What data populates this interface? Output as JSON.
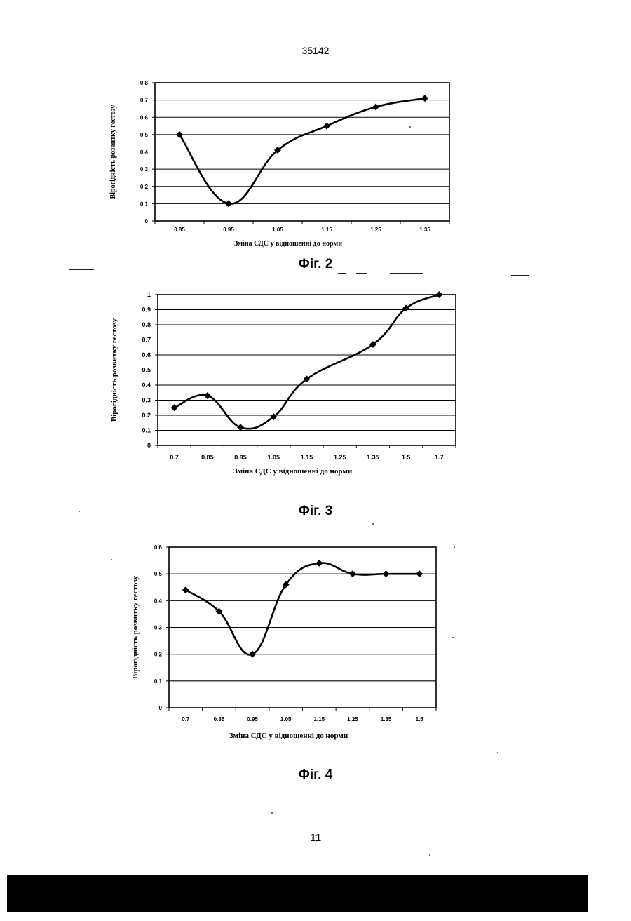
{
  "page": {
    "doc_number": "35142",
    "page_number": "11"
  },
  "chart_data": [
    {
      "type": "line",
      "caption": "Фіг. 2",
      "ylabel": "Вірогідність розвитку гестозу",
      "xlabel": "Зміна СДС у відношенні до норми",
      "categories": [
        "0.85",
        "0.95",
        "1.05",
        "1.15",
        "1.25",
        "1.35"
      ],
      "yticks": [
        "0",
        "0.1",
        "0.2",
        "0.3",
        "0.4",
        "0.5",
        "0.6",
        "0.7",
        "0.8"
      ],
      "ylim": [
        0,
        0.8
      ],
      "grid": true,
      "series": [
        {
          "values": [
            0.5,
            0.1,
            0.41,
            0.55,
            0.66,
            0.71
          ]
        }
      ]
    },
    {
      "type": "line",
      "caption": "Фіг. 3",
      "ylabel": "Вірогідність розвитку гестозу",
      "xlabel": "Зміна СДС у відношенні до норми",
      "categories": [
        "0.7",
        "0.85",
        "0.95",
        "1.05",
        "1.15",
        "1.25",
        "1.35",
        "1.5",
        "1.7"
      ],
      "yticks": [
        "0",
        "0.1",
        "0.2",
        "0.3",
        "0.4",
        "0.5",
        "0.6",
        "0.7",
        "0.8",
        "0.9",
        "1"
      ],
      "ylim": [
        0,
        1
      ],
      "grid": true,
      "series": [
        {
          "points": [
            [
              0,
              0.25
            ],
            [
              1,
              0.33
            ],
            [
              2,
              0.12
            ],
            [
              3,
              0.19
            ],
            [
              4,
              0.44
            ],
            [
              6,
              0.67
            ],
            [
              7,
              0.91
            ],
            [
              8,
              1.0
            ]
          ]
        }
      ]
    },
    {
      "type": "line",
      "caption": "Фіг. 4",
      "ylabel": "Вірогідність розвитку гестозу",
      "xlabel": "Зміна СДС у відношенні до норми",
      "categories": [
        "0.7",
        "0.85",
        "0.95",
        "1.05",
        "1.15",
        "1.25",
        "1.35",
        "1.5"
      ],
      "yticks": [
        "0",
        "0.1",
        "0.2",
        "0.3",
        "0.4",
        "0.5",
        "0.6"
      ],
      "ylim": [
        0,
        0.6
      ],
      "grid": true,
      "series": [
        {
          "values": [
            0.44,
            0.36,
            0.2,
            0.46,
            0.54,
            0.5,
            0.5,
            0.5
          ]
        }
      ]
    }
  ]
}
